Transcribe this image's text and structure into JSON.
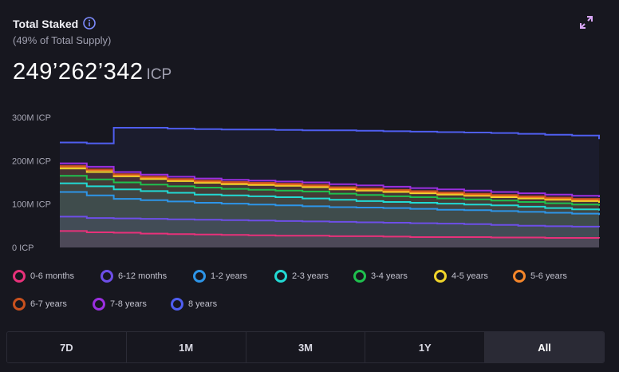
{
  "header": {
    "title": "Total Staked",
    "subtitle": "(49% of Total Supply)",
    "value": "249’262’342",
    "unit": "ICP"
  },
  "chart_data": {
    "type": "area",
    "title": "",
    "xlabel": "",
    "ylabel": "",
    "ylim": [
      0,
      300
    ],
    "y_ticks": [
      "0 ICP",
      "100M ICP",
      "200M ICP",
      "300M ICP"
    ],
    "y_tick_values": [
      0,
      100,
      200,
      300
    ],
    "grid": false,
    "legend_placement": "bottom",
    "series": [
      {
        "name": "0-6 months",
        "color": "#e8317a",
        "values": [
          38,
          35,
          34,
          32,
          31,
          30,
          29,
          28,
          27,
          27,
          26,
          26,
          25,
          24,
          24,
          24,
          23,
          23,
          22,
          22,
          21
        ]
      },
      {
        "name": "6-12 months",
        "color": "#6d4ee8",
        "values": [
          71,
          68,
          67,
          66,
          65,
          64,
          63,
          62,
          61,
          60,
          59,
          58,
          57,
          56,
          55,
          54,
          52,
          50,
          49,
          48,
          47
        ]
      },
      {
        "name": "1-2 years",
        "color": "#2d95e8",
        "values": [
          128,
          120,
          112,
          109,
          106,
          103,
          101,
          99,
          97,
          95,
          93,
          92,
          91,
          89,
          87,
          86,
          84,
          82,
          80,
          78,
          75
        ]
      },
      {
        "name": "2-3 years",
        "color": "#22d9d3",
        "values": [
          148,
          141,
          134,
          130,
          126,
          122,
          120,
          118,
          116,
          113,
          110,
          107,
          105,
          103,
          101,
          99,
          97,
          94,
          91,
          88,
          85
        ]
      },
      {
        "name": "3-4 years",
        "color": "#1fc04e",
        "values": [
          165,
          157,
          150,
          145,
          141,
          138,
          135,
          133,
          131,
          129,
          124,
          121,
          118,
          116,
          113,
          111,
          108,
          105,
          102,
          99,
          96
        ]
      },
      {
        "name": "4-5 years",
        "color": "#f0d42a",
        "values": [
          182,
          174,
          164,
          158,
          153,
          149,
          146,
          144,
          142,
          139,
          134,
          131,
          128,
          125,
          122,
          119,
          116,
          113,
          110,
          107,
          103
        ]
      },
      {
        "name": "5-6 years",
        "color": "#f5862a",
        "values": [
          186,
          178,
          167,
          161,
          156,
          152,
          149,
          147,
          145,
          142,
          137,
          134,
          131,
          128,
          125,
          122,
          119,
          116,
          113,
          110,
          107
        ]
      },
      {
        "name": "6-7 years",
        "color": "#c9511e",
        "values": [
          188,
          180,
          169,
          163,
          158,
          154,
          151,
          149,
          147,
          144,
          139,
          136,
          133,
          130,
          127,
          124,
          121,
          118,
          115,
          112,
          109
        ]
      },
      {
        "name": "7-8 years",
        "color": "#9b2fe0",
        "values": [
          194,
          186,
          174,
          168,
          163,
          159,
          156,
          154,
          152,
          150,
          146,
          143,
          140,
          137,
          134,
          131,
          128,
          125,
          122,
          119,
          116
        ]
      },
      {
        "name": "8 years",
        "color": "#4f5ef0",
        "values": [
          242,
          240,
          276,
          276,
          274,
          273,
          272,
          272,
          271,
          270,
          270,
          269,
          268,
          267,
          266,
          265,
          264,
          262,
          260,
          258,
          250
        ]
      }
    ]
  },
  "range_buttons": [
    "7D",
    "1M",
    "3M",
    "1Y",
    "All"
  ],
  "active_range": "All"
}
